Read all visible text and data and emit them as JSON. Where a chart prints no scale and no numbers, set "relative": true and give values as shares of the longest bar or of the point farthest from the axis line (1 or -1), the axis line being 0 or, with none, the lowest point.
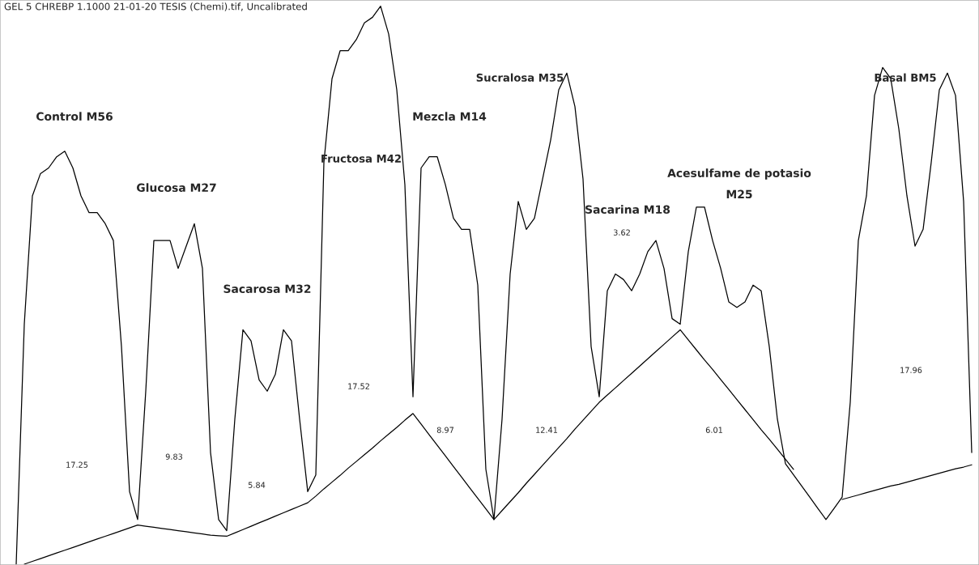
{
  "chart_data": {
    "type": "line",
    "relative": true,
    "categories": [
      null,
      null,
      null,
      null,
      null,
      null,
      null,
      null,
      null,
      null,
      null,
      null,
      null,
      null,
      null,
      null,
      null,
      null,
      null,
      null,
      null,
      null,
      null,
      null,
      null,
      null,
      null,
      null,
      null,
      null,
      null,
      null,
      null,
      null,
      null,
      null,
      null,
      null,
      null,
      null,
      null,
      null,
      null,
      null,
      null,
      null,
      null,
      null,
      null,
      null,
      null,
      null,
      null,
      null,
      null,
      null,
      null,
      null,
      null,
      null,
      null,
      null,
      null,
      null,
      null,
      null,
      null,
      null,
      null,
      null,
      null,
      null,
      null,
      null,
      null,
      null,
      null,
      null,
      null,
      null,
      null,
      null,
      null,
      null,
      null,
      null,
      null,
      null,
      null,
      null,
      null,
      null,
      null,
      null,
      null,
      null,
      null,
      null,
      null,
      null,
      null,
      null,
      null,
      null,
      null,
      null,
      null,
      null,
      null,
      null,
      null,
      null,
      null,
      null,
      null,
      null,
      null,
      null,
      null
    ],
    "series": [
      {
        "color": "#000000",
        "values": [
          0,
          0.43,
          0.66,
          0.7,
          0.71,
          0.73,
          0.74,
          0.71,
          0.66,
          0.63,
          0.63,
          0.61,
          0.58,
          0.39,
          0.13,
          0.08,
          0.31,
          0.58,
          0.58,
          0.58,
          0.53,
          0.57,
          0.61,
          0.53,
          0.2,
          0.08,
          0.06,
          0.26,
          0.42,
          0.4,
          0.33,
          0.31,
          0.34,
          0.42,
          0.4,
          0.26,
          0.13,
          0.16,
          0.72,
          0.87,
          0.92,
          0.92,
          0.94,
          0.97,
          0.98,
          1,
          0.95,
          0.85,
          0.68,
          0.3,
          0.71,
          0.73,
          0.73,
          0.68,
          0.62,
          0.6,
          0.6,
          0.5,
          0.17,
          0.08,
          0.26,
          0.52,
          0.65,
          0.6,
          0.62,
          0.69,
          0.76,
          0.85,
          0.88,
          0.82,
          0.69,
          0.39,
          0.3,
          0.49,
          0.52,
          0.51,
          0.49,
          0.52,
          0.56,
          0.58,
          0.53,
          0.44,
          0.43,
          0.56,
          0.64,
          0.64,
          0.58,
          0.53,
          0.47,
          0.46,
          0.47,
          0.5,
          0.49,
          0.39,
          0.26,
          0.18,
          0.16,
          0.14,
          0.12,
          0.1,
          0.08,
          0.1,
          0.12,
          0.29,
          0.58,
          0.66,
          0.84,
          0.89,
          0.87,
          0.78,
          0.66,
          0.57,
          0.6,
          0.72,
          0.85,
          0.88,
          0.84,
          0.65,
          0.2
        ]
      },
      {
        "color": "#000000",
        "values": [
          null,
          0,
          0.005,
          0.01,
          0.015,
          0.02,
          0.025,
          0.03,
          0.035,
          0.04,
          0.045,
          0.05,
          0.055,
          0.06,
          0.065,
          0.07,
          0.068,
          0.066,
          0.064,
          0.062,
          0.06,
          0.058,
          0.056,
          0.054,
          0.052,
          0.051,
          0.05,
          0.056,
          0.062,
          0.068,
          0.074,
          0.08,
          0.086,
          0.092,
          0.098,
          0.104,
          0.11,
          0.122,
          0.135,
          0.147,
          0.159,
          0.172,
          0.184,
          0.196,
          0.208,
          0.221,
          0.233,
          0.245,
          0.258,
          0.27,
          0.251,
          0.232,
          0.213,
          0.194,
          0.175,
          0.156,
          0.137,
          0.118,
          0.099,
          0.08,
          0.096,
          0.112,
          0.128,
          0.145,
          0.161,
          0.177,
          0.193,
          0.209,
          0.225,
          0.242,
          0.258,
          0.274,
          0.29,
          0.303,
          0.316,
          0.329,
          0.342,
          0.355,
          0.368,
          0.381,
          0.394,
          0.407,
          0.42,
          0.402,
          0.384,
          0.366,
          0.349,
          0.331,
          0.313,
          0.295,
          0.277,
          0.259,
          0.241,
          0.224,
          0.206,
          0.188,
          0.17,
          null,
          null,
          null,
          null,
          null,
          0.116,
          0.12,
          0.124,
          0.128,
          0.132,
          0.136,
          0.14,
          0.143,
          0.147,
          0.151,
          0.155,
          0.159,
          0.163,
          0.167,
          0.171,
          0.174,
          0.178
        ]
      }
    ],
    "annotations": [
      "GEL 5 CHREBP 1.1000 21-01-20 TESIS (Chemi).tif, Uncalibrated",
      "Control M56",
      "Glucosa M27",
      "Sacarosa M32",
      "Fructosa M42",
      "Mezcla M14",
      "Sucralosa M35",
      "Sacarina M18",
      "Acesulfame de potasio\nM25",
      "Basal BM5",
      "17.25",
      "9.83",
      "5.84",
      "17.52",
      "8.97",
      "12.41",
      "3.62",
      "6.01",
      "17.96"
    ],
    "grid": false,
    "legend": false,
    "marker": "none",
    "line_style": "solid"
  }
}
